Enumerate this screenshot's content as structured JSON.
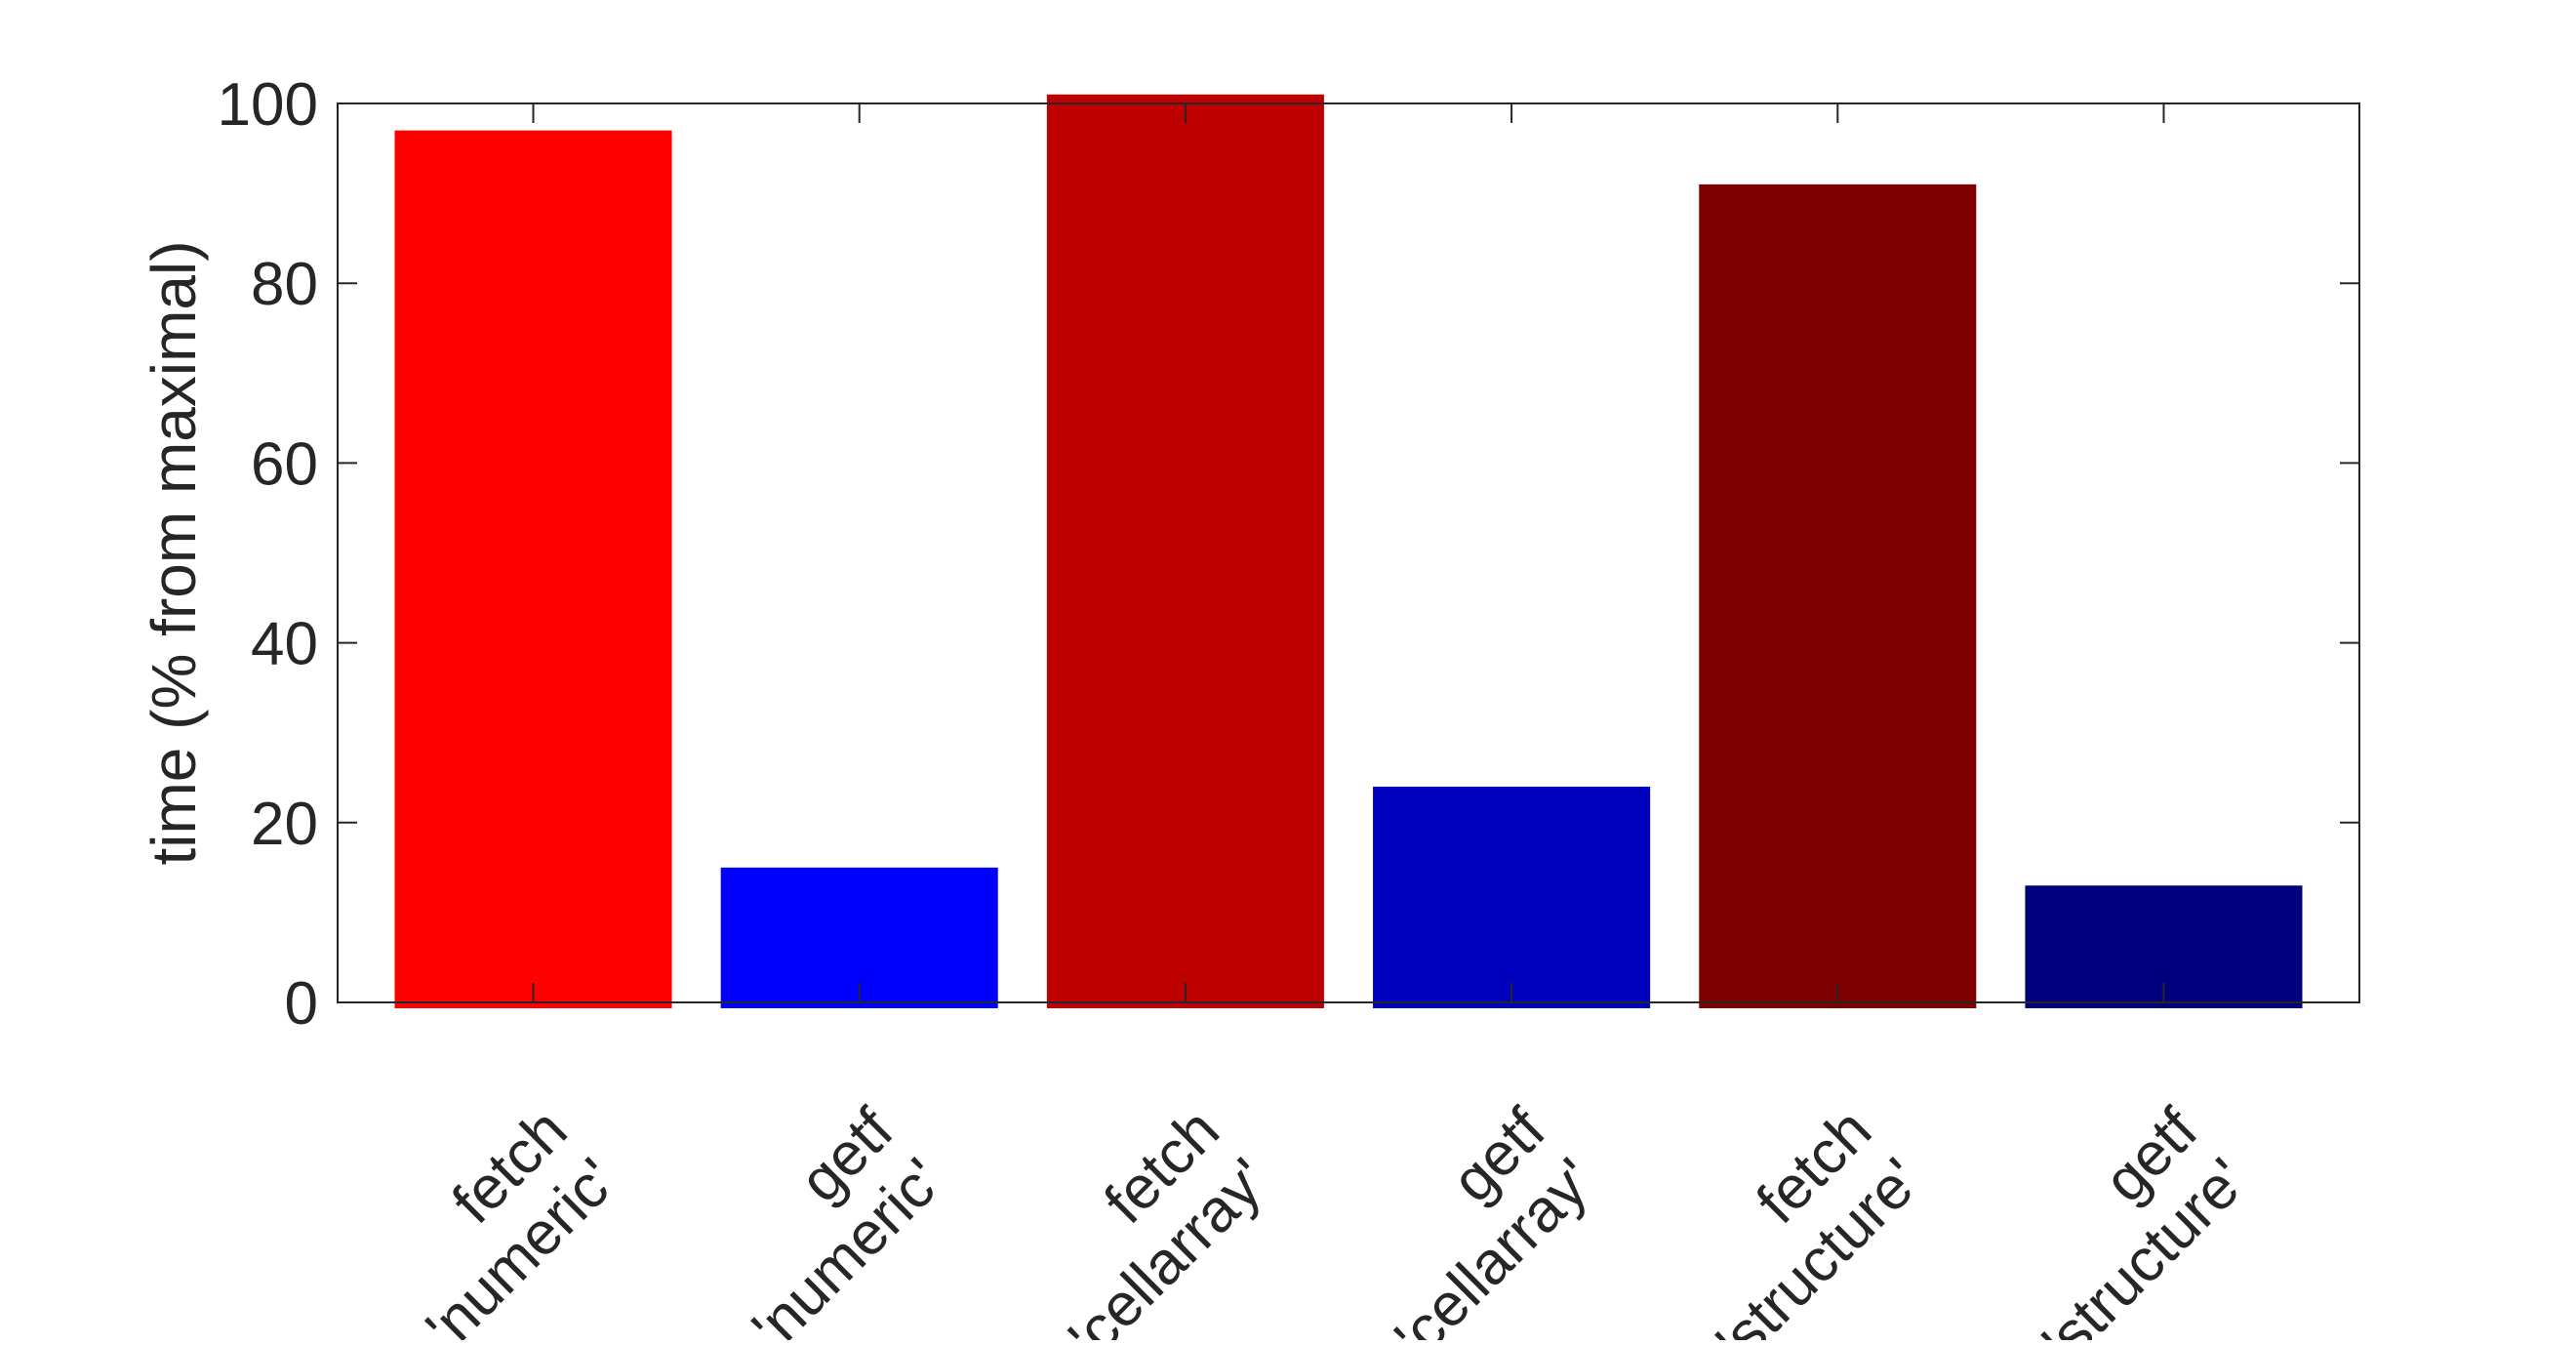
{
  "chart_data": {
    "type": "bar",
    "title": "",
    "xlabel": "",
    "ylabel": "time (% from maximal)",
    "categories": [
      [
        "fetch",
        "'numeric'"
      ],
      [
        "getf",
        "'numeric'"
      ],
      [
        "fetch",
        "'cellarray'"
      ],
      [
        "getf",
        "'cellarray'"
      ],
      [
        "fetch",
        "'structure'"
      ],
      [
        "getf",
        "'structure'"
      ]
    ],
    "values": [
      97,
      15,
      101,
      24,
      91,
      13
    ],
    "colors": [
      "#ff0000",
      "#0000ff",
      "#bf0000",
      "#0000bf",
      "#800000",
      "#00007f"
    ],
    "ylim": [
      0,
      100
    ],
    "yticks": [
      0,
      20,
      40,
      60,
      80,
      100
    ],
    "grid": false,
    "legend": "none"
  }
}
